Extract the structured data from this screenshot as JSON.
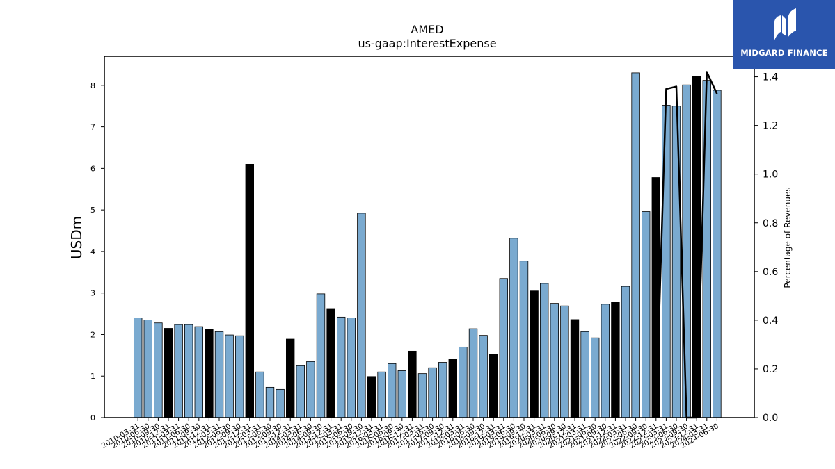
{
  "chart_data": {
    "type": "bar",
    "title": "AMED",
    "subtitle": "us-gaap:InterestExpense",
    "ylabel": "USDm",
    "y2label": "Percentage of Revenues",
    "ylim": [
      0,
      8.7
    ],
    "y2lim": [
      0,
      1.4844
    ],
    "yticks": [
      0,
      1,
      2,
      3,
      4,
      5,
      6,
      7,
      8
    ],
    "y2ticks": [
      0.0,
      0.2,
      0.4,
      0.6,
      0.8,
      1.0,
      1.2,
      1.4
    ],
    "colors": {
      "quarter": "#7aaad0",
      "fiscal_year": "#000000",
      "line": "#000000"
    },
    "categories": [
      "2010-03-31",
      "2010-06-30",
      "2010-09-30",
      "2010-12-31",
      "2011-03-31",
      "2011-06-30",
      "2011-09-30",
      "2011-12-31",
      "2012-03-31",
      "2012-06-30",
      "2012-09-30",
      "2012-12-31",
      "2013-03-31",
      "2013-06-30",
      "2013-09-30",
      "2013-12-31",
      "2014-03-31",
      "2014-06-30",
      "2014-09-30",
      "2014-12-31",
      "2015-03-31",
      "2015-06-30",
      "2015-09-30",
      "2015-12-31",
      "2016-03-31",
      "2016-06-30",
      "2016-09-30",
      "2016-12-31",
      "2017-03-31",
      "2017-06-30",
      "2017-09-30",
      "2017-12-31",
      "2018-03-31",
      "2018-06-30",
      "2018-09-30",
      "2018-12-31",
      "2019-03-31",
      "2019-06-30",
      "2019-09-30",
      "2019-12-31",
      "2020-03-31",
      "2020-06-30",
      "2020-09-30",
      "2020-12-31",
      "2021-03-31",
      "2021-06-30",
      "2021-09-30",
      "2021-12-31",
      "2022-03-31",
      "2022-06-30",
      "2022-09-30",
      "2022-12-31",
      "2023-03-31",
      "2023-06-30",
      "2023-09-30",
      "2023-12-31",
      "2024-03-31",
      "2024-06-30"
    ],
    "values": [
      2.4,
      2.35,
      2.28,
      2.15,
      2.24,
      2.24,
      2.19,
      2.12,
      2.07,
      1.99,
      1.97,
      6.1,
      1.1,
      0.73,
      0.68,
      1.89,
      1.25,
      1.35,
      2.98,
      2.61,
      2.42,
      2.4,
      4.92,
      0.99,
      1.1,
      1.3,
      1.13,
      1.6,
      1.06,
      1.2,
      1.33,
      1.41,
      1.7,
      2.14,
      1.98,
      1.53,
      3.35,
      4.32,
      3.77,
      3.05,
      3.23,
      2.75,
      2.69,
      2.36,
      2.07,
      1.92,
      2.73,
      2.78,
      3.16,
      8.3,
      4.96,
      5.78,
      7.52,
      7.5,
      8.01,
      8.22,
      8.12,
      7.88
    ],
    "fiscal_year_flags": [
      0,
      0,
      0,
      1,
      0,
      0,
      0,
      1,
      0,
      0,
      0,
      1,
      0,
      0,
      0,
      1,
      0,
      0,
      0,
      1,
      0,
      0,
      0,
      1,
      0,
      0,
      0,
      1,
      0,
      0,
      0,
      1,
      0,
      0,
      0,
      1,
      0,
      0,
      0,
      1,
      0,
      0,
      0,
      1,
      0,
      0,
      0,
      1,
      0,
      0,
      0,
      1,
      0,
      0,
      0,
      1,
      0,
      0
    ],
    "line_series": {
      "axis": "right",
      "points": [
        [
          51,
          0.0
        ],
        [
          52,
          1.35
        ],
        [
          53,
          1.36
        ],
        [
          54,
          0.0
        ],
        [
          55,
          0.0
        ],
        [
          56,
          1.42
        ],
        [
          57,
          1.33
        ]
      ]
    }
  }
}
